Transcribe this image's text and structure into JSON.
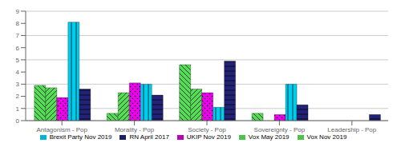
{
  "chart_data": {
    "type": "bar",
    "categories": [
      "Antagonism - Pop",
      "Morality - Pop",
      "Society - Pop",
      "Sovereignty - Pop",
      "Leadership - Pop"
    ],
    "series": [
      {
        "name": "Vox Nov 2019",
        "color": "#55dd55",
        "values": [
          2.9,
          0.6,
          4.6,
          0.6,
          0.0
        ]
      },
      {
        "name": "Vox May 2019",
        "color": "#55dd55",
        "values": [
          2.7,
          2.3,
          2.6,
          0.0,
          0.0
        ]
      },
      {
        "name": "UKIP Nov 2019",
        "color": "#ee00ee",
        "values": [
          1.9,
          3.1,
          2.3,
          0.5,
          0.0
        ]
      },
      {
        "name": "Brexit Party Nov 2019",
        "color": "#00ccee",
        "values": [
          8.1,
          3.0,
          1.1,
          3.0,
          0.0
        ]
      },
      {
        "name": "RN April 2017",
        "color": "#222277",
        "values": [
          2.6,
          2.1,
          4.9,
          1.3,
          0.5
        ]
      }
    ],
    "ylim": [
      0,
      9
    ],
    "yticks": [
      0,
      1,
      2,
      3,
      4,
      5,
      6,
      7,
      8,
      9
    ],
    "grid": true,
    "legend": "bottom"
  }
}
